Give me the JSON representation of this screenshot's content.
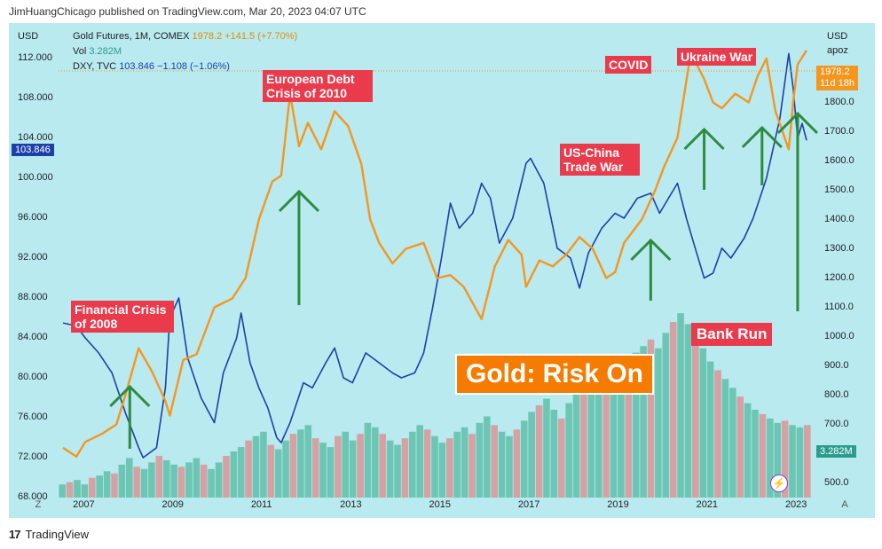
{
  "header": {
    "credit": "JimHuangChicago published on TradingView.com, Mar 20, 2023 04:07 UTC"
  },
  "legend": {
    "gold": {
      "name": "Gold Futures, 1M, COMEX",
      "value": "1978.2",
      "change": "+141.5 (+7.70%)"
    },
    "vol": {
      "name": "Vol",
      "value": "3.282M"
    },
    "dxy": {
      "name": "DXY, TVC",
      "value": "103.846",
      "change": "−1.108 (−1.06%)"
    }
  },
  "axes": {
    "left_unit": "USD",
    "right_unit": "USD",
    "right_subunit": "apoz",
    "left_ticks": [
      "112.000",
      "108.000",
      "104.000",
      "100.000",
      "96.000",
      "92.000",
      "88.000",
      "84.000",
      "80.000",
      "76.000",
      "72.000",
      "68.000"
    ],
    "right_ticks": [
      "1900.0",
      "1800.0",
      "1700.0",
      "1600.0",
      "1500.0",
      "1400.0",
      "1300.0",
      "1200.0",
      "1100.0",
      "1000.0",
      "900.0",
      "800.0",
      "700.0",
      "600.0",
      "500.0"
    ],
    "x_ticks": [
      "2007",
      "2009",
      "2011",
      "2013",
      "2015",
      "2017",
      "2019",
      "2021",
      "2023"
    ],
    "dxy_tag": "103.846",
    "gold_tag": "1978.2",
    "gold_countdown": "11d 18h",
    "vol_tag": "3.282M",
    "corner_left": "Z",
    "corner_right": "A"
  },
  "annotations": {
    "financial": "Financial Crisis of 2008",
    "european": "European Debt Crisis of 2010",
    "covid": "COVID",
    "ukraine": "Ukraine War",
    "uschina": "US-China Trade War",
    "bankrun": "Bank Run",
    "banner": "Gold:  Risk On"
  },
  "footer": {
    "brand": "TradingView"
  },
  "colors": {
    "gold": "#f5961f",
    "dxy": "#1e3fa8",
    "vol_up": "#5fbfa8",
    "vol_down": "#d99494",
    "arrow": "#2e8b3e",
    "annot": "#ea3b4c",
    "background": "#b8eaf0"
  },
  "chart_data": {
    "type": "line",
    "x_range": [
      2006.4,
      2023.3
    ],
    "series": [
      {
        "name": "Gold Futures, 1M, COMEX",
        "axis": "right",
        "points": [
          [
            2006.5,
            620
          ],
          [
            2006.8,
            590
          ],
          [
            2007.0,
            640
          ],
          [
            2007.4,
            670
          ],
          [
            2007.7,
            700
          ],
          [
            2007.9,
            800
          ],
          [
            2008.2,
            960
          ],
          [
            2008.5,
            880
          ],
          [
            2008.8,
            780
          ],
          [
            2008.9,
            730
          ],
          [
            2009.2,
            920
          ],
          [
            2009.5,
            940
          ],
          [
            2009.9,
            1100
          ],
          [
            2010.3,
            1130
          ],
          [
            2010.6,
            1200
          ],
          [
            2010.9,
            1400
          ],
          [
            2011.2,
            1530
          ],
          [
            2011.4,
            1550
          ],
          [
            2011.6,
            1830
          ],
          [
            2011.8,
            1650
          ],
          [
            2012.0,
            1730
          ],
          [
            2012.3,
            1640
          ],
          [
            2012.6,
            1770
          ],
          [
            2012.9,
            1720
          ],
          [
            2013.2,
            1590
          ],
          [
            2013.4,
            1400
          ],
          [
            2013.6,
            1320
          ],
          [
            2013.9,
            1250
          ],
          [
            2014.2,
            1300
          ],
          [
            2014.6,
            1320
          ],
          [
            2014.9,
            1200
          ],
          [
            2015.2,
            1210
          ],
          [
            2015.5,
            1170
          ],
          [
            2015.9,
            1060
          ],
          [
            2016.2,
            1240
          ],
          [
            2016.5,
            1330
          ],
          [
            2016.8,
            1280
          ],
          [
            2016.9,
            1170
          ],
          [
            2017.2,
            1260
          ],
          [
            2017.5,
            1240
          ],
          [
            2017.8,
            1280
          ],
          [
            2018.1,
            1340
          ],
          [
            2018.4,
            1300
          ],
          [
            2018.7,
            1200
          ],
          [
            2018.9,
            1220
          ],
          [
            2019.1,
            1320
          ],
          [
            2019.5,
            1400
          ],
          [
            2019.8,
            1500
          ],
          [
            2020.0,
            1580
          ],
          [
            2020.3,
            1680
          ],
          [
            2020.6,
            1970
          ],
          [
            2020.9,
            1880
          ],
          [
            2021.1,
            1800
          ],
          [
            2021.3,
            1780
          ],
          [
            2021.6,
            1830
          ],
          [
            2021.9,
            1800
          ],
          [
            2022.1,
            1890
          ],
          [
            2022.3,
            1950
          ],
          [
            2022.5,
            1770
          ],
          [
            2022.8,
            1640
          ],
          [
            2022.9,
            1800
          ],
          [
            2023.0,
            1930
          ],
          [
            2023.2,
            1978
          ]
        ]
      },
      {
        "name": "DXY, TVC",
        "axis": "left",
        "points": [
          [
            2006.5,
            85.5
          ],
          [
            2006.8,
            85.2
          ],
          [
            2007.0,
            84.0
          ],
          [
            2007.3,
            82.5
          ],
          [
            2007.6,
            80.5
          ],
          [
            2007.9,
            76.5
          ],
          [
            2008.2,
            73.0
          ],
          [
            2008.3,
            72.0
          ],
          [
            2008.6,
            73.0
          ],
          [
            2008.8,
            79.0
          ],
          [
            2008.9,
            86.0
          ],
          [
            2009.1,
            88.0
          ],
          [
            2009.3,
            82.0
          ],
          [
            2009.6,
            78.0
          ],
          [
            2009.9,
            75.5
          ],
          [
            2010.1,
            80.5
          ],
          [
            2010.4,
            84.0
          ],
          [
            2010.5,
            86.5
          ],
          [
            2010.7,
            81.5
          ],
          [
            2010.9,
            79.0
          ],
          [
            2011.1,
            77.0
          ],
          [
            2011.3,
            74.0
          ],
          [
            2011.4,
            73.5
          ],
          [
            2011.6,
            75.5
          ],
          [
            2011.9,
            79.5
          ],
          [
            2012.1,
            79.0
          ],
          [
            2012.4,
            81.5
          ],
          [
            2012.6,
            83.0
          ],
          [
            2012.8,
            80.0
          ],
          [
            2013.0,
            79.5
          ],
          [
            2013.3,
            82.5
          ],
          [
            2013.6,
            81.5
          ],
          [
            2013.9,
            80.5
          ],
          [
            2014.1,
            80.0
          ],
          [
            2014.4,
            80.5
          ],
          [
            2014.6,
            82.5
          ],
          [
            2014.8,
            87.0
          ],
          [
            2015.0,
            92.0
          ],
          [
            2015.2,
            97.5
          ],
          [
            2015.4,
            95.0
          ],
          [
            2015.7,
            96.5
          ],
          [
            2015.9,
            99.5
          ],
          [
            2016.1,
            98.0
          ],
          [
            2016.3,
            93.5
          ],
          [
            2016.6,
            96.0
          ],
          [
            2016.9,
            101.5
          ],
          [
            2017.0,
            102.0
          ],
          [
            2017.3,
            99.5
          ],
          [
            2017.6,
            93.0
          ],
          [
            2017.9,
            92.0
          ],
          [
            2018.1,
            89.0
          ],
          [
            2018.3,
            92.5
          ],
          [
            2018.6,
            95.0
          ],
          [
            2018.9,
            96.5
          ],
          [
            2019.1,
            96.0
          ],
          [
            2019.4,
            98.0
          ],
          [
            2019.7,
            98.5
          ],
          [
            2019.9,
            96.5
          ],
          [
            2020.1,
            98.0
          ],
          [
            2020.3,
            99.5
          ],
          [
            2020.5,
            96.0
          ],
          [
            2020.7,
            93.0
          ],
          [
            2020.9,
            90.0
          ],
          [
            2021.1,
            90.5
          ],
          [
            2021.3,
            93.0
          ],
          [
            2021.5,
            92.0
          ],
          [
            2021.8,
            94.0
          ],
          [
            2022.0,
            96.0
          ],
          [
            2022.3,
            100.0
          ],
          [
            2022.6,
            106.0
          ],
          [
            2022.8,
            112.5
          ],
          [
            2022.9,
            109.0
          ],
          [
            2023.0,
            104.0
          ],
          [
            2023.1,
            105.5
          ],
          [
            2023.2,
            103.8
          ]
        ]
      },
      {
        "name": "Vol",
        "axis": "volume",
        "type": "bar",
        "values": [
          0.6,
          0.7,
          0.8,
          0.6,
          0.9,
          1.0,
          1.2,
          1.1,
          1.5,
          1.8,
          1.4,
          1.3,
          1.6,
          1.9,
          1.7,
          1.5,
          1.4,
          1.6,
          1.8,
          1.5,
          1.3,
          1.6,
          1.9,
          2.1,
          2.3,
          2.6,
          2.8,
          3.0,
          2.4,
          2.2,
          2.6,
          2.9,
          3.1,
          3.3,
          2.7,
          2.5,
          2.3,
          2.8,
          3.0,
          2.6,
          2.9,
          3.4,
          3.2,
          2.9,
          2.6,
          2.4,
          2.7,
          3.0,
          3.3,
          3.1,
          2.8,
          2.5,
          2.7,
          3.0,
          3.2,
          2.9,
          3.4,
          3.7,
          3.3,
          3.0,
          2.8,
          3.1,
          3.5,
          3.9,
          4.2,
          4.5,
          4.0,
          3.6,
          4.3,
          4.8,
          5.1,
          5.5,
          5.2,
          4.9,
          5.3,
          5.8,
          6.2,
          6.6,
          6.9,
          7.2,
          6.8,
          7.5,
          8.0,
          8.4,
          7.9,
          7.3,
          6.8,
          6.2,
          5.8,
          5.4,
          5.0,
          4.6,
          4.3,
          4.0,
          3.8,
          3.6,
          3.4,
          3.5,
          3.3,
          3.2,
          3.3
        ]
      }
    ],
    "y_left_range": [
      68,
      112
    ],
    "y_right_range": [
      450,
      1950
    ],
    "y_volume_range": [
      0,
      20
    ]
  }
}
